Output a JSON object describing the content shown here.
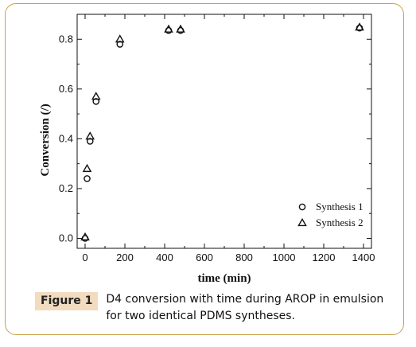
{
  "chart_data": {
    "type": "scatter",
    "xlabel": "time (min)",
    "ylabel": "Conversion (/)",
    "xlim": [
      -40,
      1440
    ],
    "ylim": [
      -0.04,
      0.9
    ],
    "xticks": [
      0,
      200,
      400,
      600,
      800,
      1000,
      1200,
      1400
    ],
    "yticks": [
      0.0,
      0.2,
      0.4,
      0.6,
      0.8
    ],
    "grid": false,
    "legend_position": "bottom-right",
    "series": [
      {
        "name": "Synthesis 1",
        "marker": "circle",
        "points": [
          {
            "x": 0,
            "y": 0.0
          },
          {
            "x": 10,
            "y": 0.24
          },
          {
            "x": 25,
            "y": 0.39
          },
          {
            "x": 55,
            "y": 0.55
          },
          {
            "x": 175,
            "y": 0.78
          },
          {
            "x": 420,
            "y": 0.835
          },
          {
            "x": 480,
            "y": 0.835
          },
          {
            "x": 1380,
            "y": 0.845
          }
        ]
      },
      {
        "name": "Synthesis 2",
        "marker": "triangle",
        "points": [
          {
            "x": 0,
            "y": 0.005
          },
          {
            "x": 10,
            "y": 0.28
          },
          {
            "x": 25,
            "y": 0.41
          },
          {
            "x": 55,
            "y": 0.57
          },
          {
            "x": 175,
            "y": 0.8
          },
          {
            "x": 420,
            "y": 0.84
          },
          {
            "x": 480,
            "y": 0.84
          },
          {
            "x": 1380,
            "y": 0.848
          }
        ]
      }
    ]
  },
  "caption": {
    "label": "Figure 1",
    "text": "D4 conversion with time during AROP in emulsion for two identical PDMS syntheses."
  }
}
